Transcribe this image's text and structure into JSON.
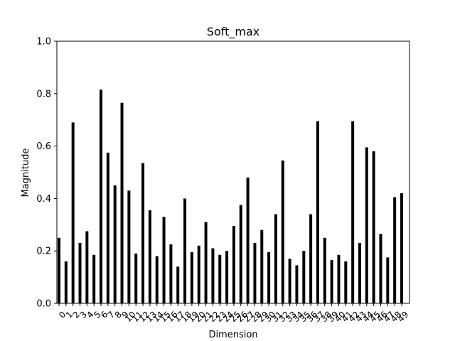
{
  "chart_data": {
    "type": "bar",
    "title": "Soft_max",
    "xlabel": "Dimension",
    "ylabel": "Magnitude",
    "ylim": [
      0,
      1.0
    ],
    "yticks": [
      "0.0",
      "0.2",
      "0.4",
      "0.6",
      "0.8",
      "1.0"
    ],
    "grid": false,
    "bar_color": "#000000",
    "categories": [
      "0",
      "1",
      "2",
      "3",
      "4",
      "5",
      "6",
      "7",
      "8",
      "9",
      "10",
      "11",
      "12",
      "13",
      "14",
      "15",
      "16",
      "17",
      "18",
      "19",
      "20",
      "21",
      "22",
      "23",
      "24",
      "25",
      "26",
      "27",
      "28",
      "29",
      "30",
      "31",
      "32",
      "33",
      "34",
      "35",
      "36",
      "37",
      "38",
      "39",
      "40",
      "41",
      "42",
      "43",
      "44",
      "45",
      "46",
      "47",
      "48",
      "49"
    ],
    "values": [
      0.25,
      0.16,
      0.69,
      0.23,
      0.275,
      0.185,
      0.815,
      0.575,
      0.45,
      0.765,
      0.43,
      0.19,
      0.535,
      0.355,
      0.18,
      0.33,
      0.225,
      0.14,
      0.4,
      0.195,
      0.22,
      0.31,
      0.21,
      0.185,
      0.2,
      0.295,
      0.375,
      0.48,
      0.23,
      0.28,
      0.195,
      0.34,
      0.545,
      0.17,
      0.145,
      0.2,
      0.34,
      0.695,
      0.25,
      0.165,
      0.185,
      0.16,
      0.695,
      0.23,
      0.595,
      0.58,
      0.265,
      0.175,
      0.405,
      0.42
    ]
  }
}
